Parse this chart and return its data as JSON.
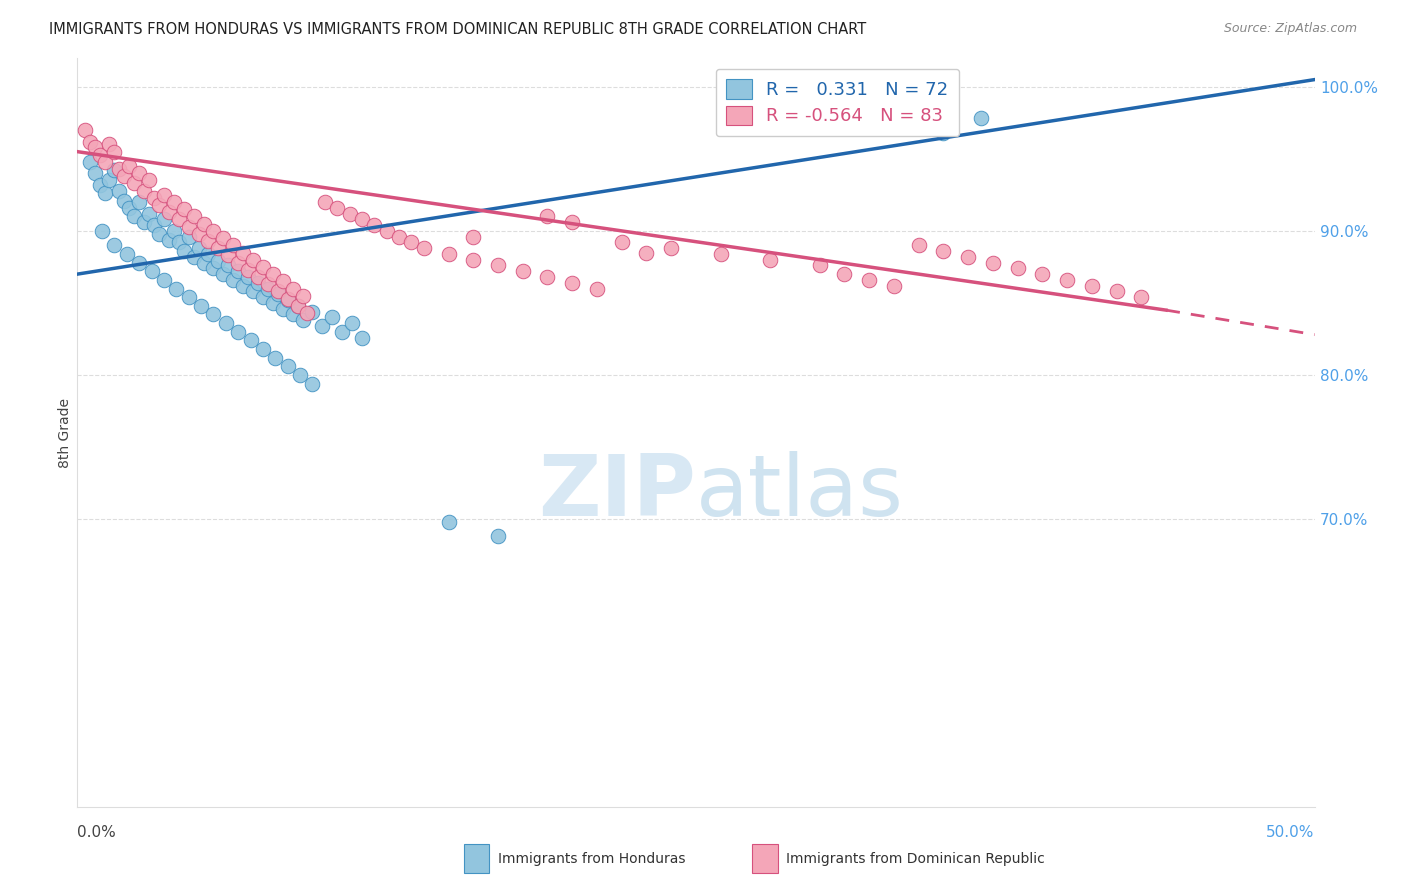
{
  "title": "IMMIGRANTS FROM HONDURAS VS IMMIGRANTS FROM DOMINICAN REPUBLIC 8TH GRADE CORRELATION CHART",
  "source": "Source: ZipAtlas.com",
  "ylabel": "8th Grade",
  "xmin": 0.0,
  "xmax": 0.5,
  "ymin": 0.5,
  "ymax": 1.02,
  "ytick_vals": [
    1.0,
    0.9,
    0.8,
    0.7
  ],
  "ytick_labels": [
    "100.0%",
    "90.0%",
    "80.0%",
    "70.0%"
  ],
  "blue_color": "#92c5de",
  "blue_edge": "#4393c3",
  "pink_color": "#f4a6b8",
  "pink_edge": "#d6517d",
  "blue_line_color": "#2166ac",
  "pink_line_color": "#d6517d",
  "blue_line": [
    0.0,
    0.87,
    0.5,
    1.005
  ],
  "pink_line_solid": [
    0.0,
    0.955,
    0.44,
    0.845
  ],
  "pink_line_dash": [
    0.44,
    0.845,
    0.5,
    0.828
  ],
  "grid_color": "#dddddd",
  "right_axis_color": "#4fa0e8",
  "blue_scatter": [
    [
      0.005,
      0.948
    ],
    [
      0.007,
      0.94
    ],
    [
      0.009,
      0.932
    ],
    [
      0.011,
      0.926
    ],
    [
      0.013,
      0.935
    ],
    [
      0.015,
      0.942
    ],
    [
      0.017,
      0.928
    ],
    [
      0.019,
      0.921
    ],
    [
      0.021,
      0.916
    ],
    [
      0.023,
      0.91
    ],
    [
      0.025,
      0.92
    ],
    [
      0.027,
      0.906
    ],
    [
      0.029,
      0.912
    ],
    [
      0.031,
      0.904
    ],
    [
      0.033,
      0.898
    ],
    [
      0.035,
      0.908
    ],
    [
      0.037,
      0.894
    ],
    [
      0.039,
      0.9
    ],
    [
      0.041,
      0.892
    ],
    [
      0.043,
      0.886
    ],
    [
      0.045,
      0.896
    ],
    [
      0.047,
      0.882
    ],
    [
      0.049,
      0.888
    ],
    [
      0.051,
      0.878
    ],
    [
      0.053,
      0.884
    ],
    [
      0.055,
      0.874
    ],
    [
      0.057,
      0.879
    ],
    [
      0.059,
      0.87
    ],
    [
      0.061,
      0.876
    ],
    [
      0.063,
      0.866
    ],
    [
      0.065,
      0.872
    ],
    [
      0.067,
      0.862
    ],
    [
      0.069,
      0.868
    ],
    [
      0.071,
      0.858
    ],
    [
      0.073,
      0.864
    ],
    [
      0.075,
      0.854
    ],
    [
      0.077,
      0.86
    ],
    [
      0.079,
      0.85
    ],
    [
      0.081,
      0.856
    ],
    [
      0.083,
      0.846
    ],
    [
      0.085,
      0.852
    ],
    [
      0.087,
      0.842
    ],
    [
      0.089,
      0.848
    ],
    [
      0.091,
      0.838
    ],
    [
      0.095,
      0.844
    ],
    [
      0.099,
      0.834
    ],
    [
      0.103,
      0.84
    ],
    [
      0.107,
      0.83
    ],
    [
      0.111,
      0.836
    ],
    [
      0.115,
      0.826
    ],
    [
      0.01,
      0.9
    ],
    [
      0.015,
      0.89
    ],
    [
      0.02,
      0.884
    ],
    [
      0.025,
      0.878
    ],
    [
      0.03,
      0.872
    ],
    [
      0.035,
      0.866
    ],
    [
      0.04,
      0.86
    ],
    [
      0.045,
      0.854
    ],
    [
      0.05,
      0.848
    ],
    [
      0.055,
      0.842
    ],
    [
      0.06,
      0.836
    ],
    [
      0.065,
      0.83
    ],
    [
      0.07,
      0.824
    ],
    [
      0.075,
      0.818
    ],
    [
      0.08,
      0.812
    ],
    [
      0.085,
      0.806
    ],
    [
      0.09,
      0.8
    ],
    [
      0.095,
      0.794
    ],
    [
      0.15,
      0.698
    ],
    [
      0.17,
      0.688
    ],
    [
      0.35,
      0.968
    ],
    [
      0.365,
      0.978
    ]
  ],
  "pink_scatter": [
    [
      0.003,
      0.97
    ],
    [
      0.005,
      0.962
    ],
    [
      0.007,
      0.958
    ],
    [
      0.009,
      0.953
    ],
    [
      0.011,
      0.948
    ],
    [
      0.013,
      0.96
    ],
    [
      0.015,
      0.955
    ],
    [
      0.017,
      0.943
    ],
    [
      0.019,
      0.938
    ],
    [
      0.021,
      0.945
    ],
    [
      0.023,
      0.933
    ],
    [
      0.025,
      0.94
    ],
    [
      0.027,
      0.928
    ],
    [
      0.029,
      0.935
    ],
    [
      0.031,
      0.923
    ],
    [
      0.033,
      0.918
    ],
    [
      0.035,
      0.925
    ],
    [
      0.037,
      0.913
    ],
    [
      0.039,
      0.92
    ],
    [
      0.041,
      0.908
    ],
    [
      0.043,
      0.915
    ],
    [
      0.045,
      0.903
    ],
    [
      0.047,
      0.91
    ],
    [
      0.049,
      0.898
    ],
    [
      0.051,
      0.905
    ],
    [
      0.053,
      0.893
    ],
    [
      0.055,
      0.9
    ],
    [
      0.057,
      0.888
    ],
    [
      0.059,
      0.895
    ],
    [
      0.061,
      0.883
    ],
    [
      0.063,
      0.89
    ],
    [
      0.065,
      0.878
    ],
    [
      0.067,
      0.885
    ],
    [
      0.069,
      0.873
    ],
    [
      0.071,
      0.88
    ],
    [
      0.073,
      0.868
    ],
    [
      0.075,
      0.875
    ],
    [
      0.077,
      0.863
    ],
    [
      0.079,
      0.87
    ],
    [
      0.081,
      0.858
    ],
    [
      0.083,
      0.865
    ],
    [
      0.085,
      0.853
    ],
    [
      0.087,
      0.86
    ],
    [
      0.089,
      0.848
    ],
    [
      0.091,
      0.855
    ],
    [
      0.093,
      0.843
    ],
    [
      0.1,
      0.92
    ],
    [
      0.105,
      0.916
    ],
    [
      0.11,
      0.912
    ],
    [
      0.115,
      0.908
    ],
    [
      0.12,
      0.904
    ],
    [
      0.125,
      0.9
    ],
    [
      0.13,
      0.896
    ],
    [
      0.135,
      0.892
    ],
    [
      0.14,
      0.888
    ],
    [
      0.15,
      0.884
    ],
    [
      0.16,
      0.88
    ],
    [
      0.17,
      0.876
    ],
    [
      0.18,
      0.872
    ],
    [
      0.19,
      0.868
    ],
    [
      0.2,
      0.864
    ],
    [
      0.21,
      0.86
    ],
    [
      0.22,
      0.892
    ],
    [
      0.24,
      0.888
    ],
    [
      0.26,
      0.884
    ],
    [
      0.28,
      0.88
    ],
    [
      0.3,
      0.876
    ],
    [
      0.31,
      0.87
    ],
    [
      0.32,
      0.866
    ],
    [
      0.33,
      0.862
    ],
    [
      0.34,
      0.89
    ],
    [
      0.35,
      0.886
    ],
    [
      0.36,
      0.882
    ],
    [
      0.37,
      0.878
    ],
    [
      0.38,
      0.874
    ],
    [
      0.39,
      0.87
    ],
    [
      0.4,
      0.866
    ],
    [
      0.41,
      0.862
    ],
    [
      0.42,
      0.858
    ],
    [
      0.43,
      0.854
    ],
    [
      0.19,
      0.91
    ],
    [
      0.2,
      0.906
    ],
    [
      0.16,
      0.896
    ],
    [
      0.23,
      0.885
    ]
  ]
}
